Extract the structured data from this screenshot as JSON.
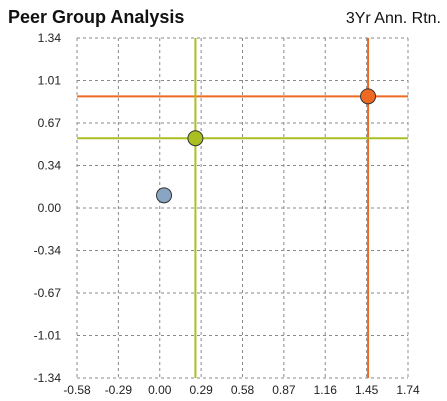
{
  "chart_data": {
    "type": "scatter",
    "title": "Peer Group Analysis",
    "ylabel": "3Yr Ann. Rtn.",
    "xlabel": "",
    "xlim": [
      -0.58,
      1.74
    ],
    "ylim": [
      -1.34,
      1.34
    ],
    "x_ticks": [
      "-0.58",
      "-0.29",
      "0.00",
      "0.29",
      "0.58",
      "0.87",
      "1.16",
      "1.45",
      "1.74"
    ],
    "y_ticks": [
      "1.34",
      "1.01",
      "0.67",
      "0.34",
      "0.00",
      "-0.34",
      "-0.67",
      "-1.01",
      "-1.34"
    ],
    "grid": true,
    "points": [
      {
        "x": 1.46,
        "y": 0.88,
        "color": "#EE6A22",
        "crosshair": true
      },
      {
        "x": 0.25,
        "y": 0.55,
        "color": "#AABF22",
        "crosshair": true
      },
      {
        "x": 0.03,
        "y": 0.1,
        "color": "#8AA4C4",
        "crosshair": false
      }
    ]
  }
}
